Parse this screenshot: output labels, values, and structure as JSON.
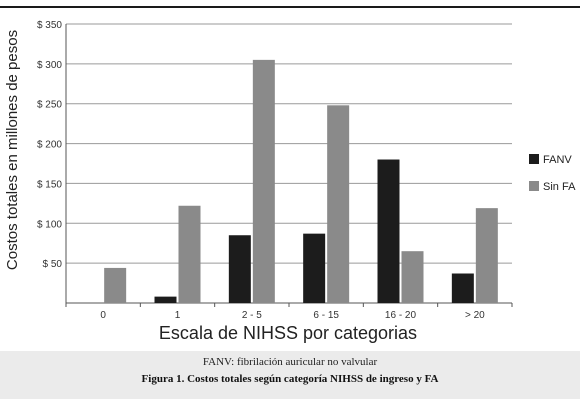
{
  "chart_data": {
    "type": "bar",
    "xlabel": "Escala de NIHSS por categorias",
    "ylabel": "Costos totales en millones de pesos",
    "ylim": [
      0,
      350
    ],
    "y_ticks": [
      "$ 50",
      "$ 100",
      "$ 150",
      "$ 200",
      "$ 250",
      "$ 300",
      "$ 350"
    ],
    "y_tick_values": [
      50,
      100,
      150,
      200,
      250,
      300,
      350
    ],
    "categories": [
      "0",
      "1",
      "2 - 5",
      "6 - 15",
      "16 - 20",
      "> 20"
    ],
    "series": [
      {
        "name": "FANV",
        "color": "#1c1c1c",
        "values": [
          0,
          8,
          85,
          87,
          180,
          37
        ]
      },
      {
        "name": "Sin FA",
        "color": "#8a8a8a",
        "values": [
          44,
          122,
          305,
          248,
          65,
          119
        ]
      }
    ],
    "grid": "horizontal",
    "legend_position": "right"
  },
  "caption": {
    "note": "FANV: fibrilación auricular no valvular",
    "figure": "Figura 1. Costos totales según categoría NIHSS de ingreso y FA"
  }
}
